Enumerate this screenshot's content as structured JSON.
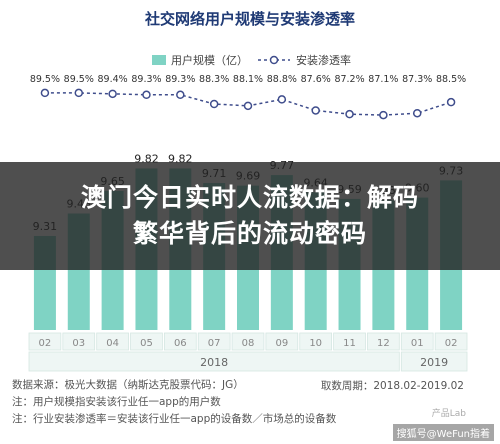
{
  "chart_data": {
    "type": "bar+line",
    "title": "社交网络用户规模与安装渗透率",
    "legend": {
      "bar_label": "用户规模（亿）",
      "line_label": "安装渗透率",
      "placement": "top-center"
    },
    "categories": [
      "02",
      "03",
      "04",
      "05",
      "06",
      "07",
      "08",
      "09",
      "10",
      "11",
      "12",
      "01",
      "02"
    ],
    "year_groups": [
      {
        "label": "2018",
        "start": 0,
        "end": 10
      },
      {
        "label": "2019",
        "start": 11,
        "end": 12
      }
    ],
    "bars": {
      "name": "用户规模（亿）",
      "values": [
        9.31,
        9.48,
        9.65,
        9.82,
        9.82,
        9.71,
        9.69,
        9.77,
        9.64,
        9.59,
        9.58,
        9.6,
        9.73
      ],
      "ylim": [
        8.6,
        10.05
      ]
    },
    "line": {
      "name": "安装渗透率",
      "values": [
        89.5,
        89.5,
        89.4,
        89.3,
        89.3,
        88.3,
        88.1,
        88.8,
        87.6,
        87.2,
        87.1,
        87.3,
        88.5
      ],
      "labels": [
        "89.5%",
        "89.5%",
        "89.4%",
        "89.3%",
        "89.3%",
        "88.3%",
        "88.1%",
        "88.8%",
        "87.6%",
        "87.2%",
        "87.1%",
        "87.3%",
        "88.5%"
      ],
      "ylim": [
        84,
        92
      ]
    },
    "colors": {
      "bar": "#7fd3c4",
      "line": "#3f4d8c",
      "title": "#1f3a75"
    },
    "grid": false
  },
  "overlay": {
    "line1": "澳门今日实时人流数据：解码",
    "line2": "繁华背后的流动密码"
  },
  "footer": {
    "source": "数据来源：极光大数据（纳斯达克股票代码：JG）",
    "note1": "注：用户规模指安装该行业任一app的用户数",
    "note2": "注：行业安装渗透率＝安装该行业任一app的设备数／市场总的设备数",
    "period": "取数周期：2018.02-2019.02"
  },
  "watermarks": {
    "brand": "产品Lab",
    "wechat": "搜狐号@WeFun指着"
  }
}
